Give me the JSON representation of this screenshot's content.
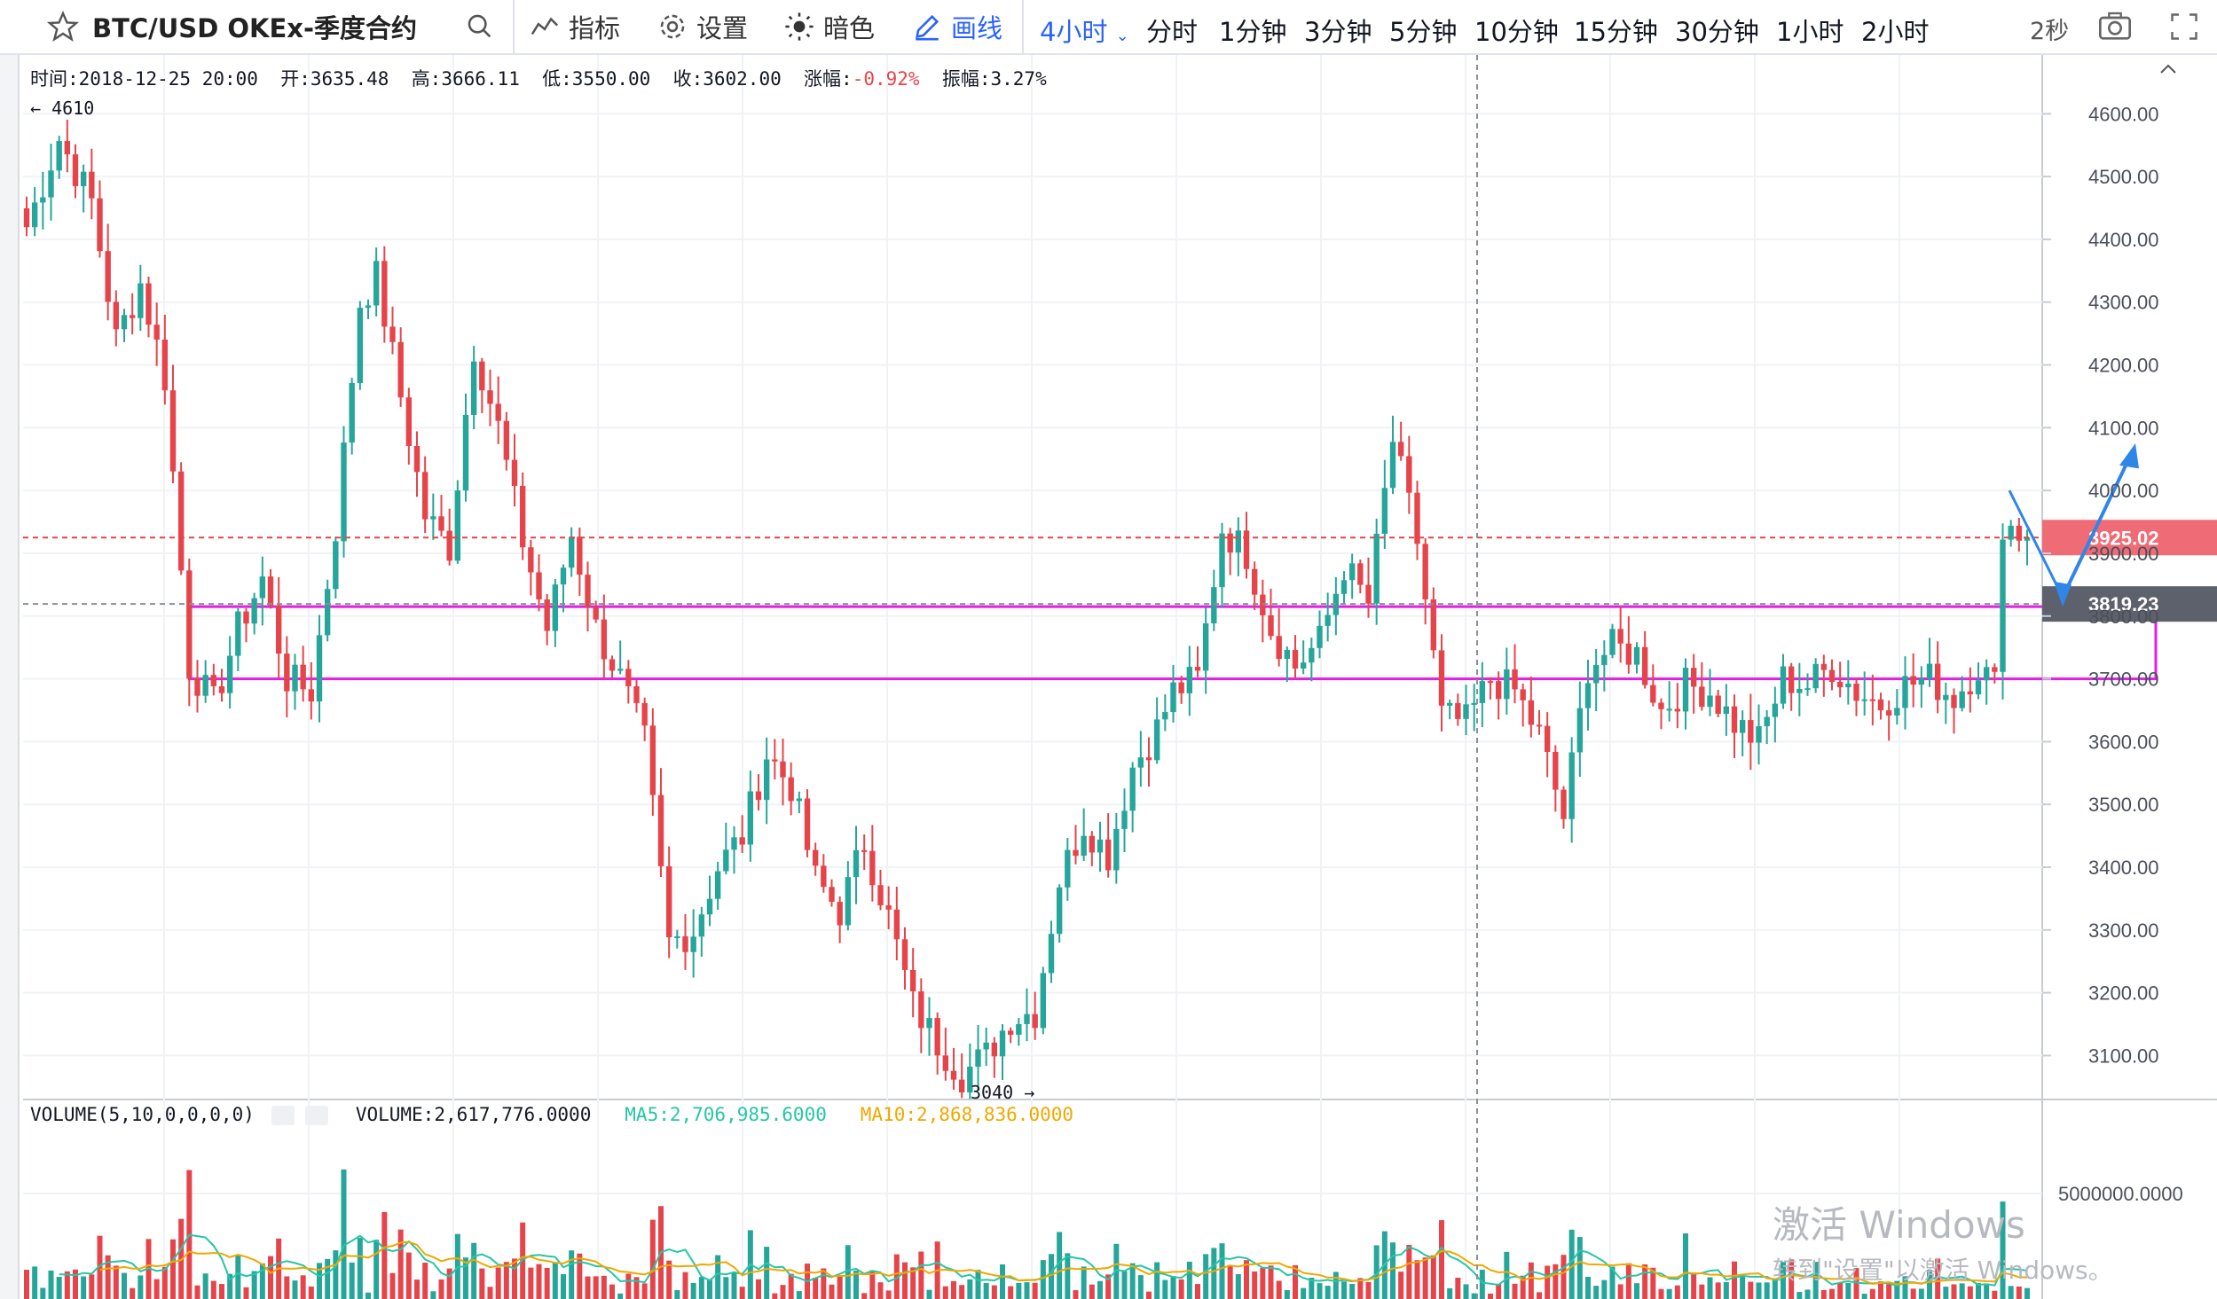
{
  "toolbar": {
    "symbol": "BTC/USD OKEx-季度合约",
    "indicators_label": "指标",
    "settings_label": "设置",
    "dark_label": "暗色",
    "draw_label": "画线",
    "current_interval": "4小时",
    "intervals": [
      "分时",
      "1分钟",
      "3分钟",
      "5分钟",
      "10分钟",
      "15分钟",
      "30分钟",
      "1小时",
      "2小时"
    ],
    "refresh": "2秒"
  },
  "legend": {
    "time": "时间:2018-12-25 20:00",
    "open": "开:3635.48",
    "high": "高:3666.11",
    "low": "低:3550.00",
    "close": "收:3602.00",
    "change": "-0.92%",
    "change_label": "涨幅:",
    "amplitude": "振幅:3.27%"
  },
  "volume_legend": {
    "title": "VOLUME(5,10,0,0,0,0)",
    "volume": "VOLUME:2,617,776.0000",
    "ma5": "MA5:2,706,985.6000",
    "ma10": "MA10:2,868,836.0000"
  },
  "watermark": {
    "line1": "激活 Windows",
    "line2": "转到\"设置\"以激活 Windows。"
  },
  "colors": {
    "up": "#26a69a",
    "down": "#e5454a",
    "price_badge": "#ef6b75",
    "crosshair_badge": "#5d616c",
    "magenta": "#e31ee6",
    "arrow": "#2f86e8",
    "ma5": "#26c6a6",
    "ma10": "#f0a800"
  },
  "chart_data": {
    "type": "candlestick",
    "title": "BTC/USD OKEx-季度合约",
    "interval": "4小时",
    "ylim": [
      3030,
      4640
    ],
    "y_ticks": [
      "4600.00",
      "4500.00",
      "4400.00",
      "4300.00",
      "4200.00",
      "4100.00",
      "4000.00",
      "3900.00",
      "3800.00",
      "3700.00",
      "3600.00",
      "3500.00",
      "3400.00",
      "3300.00",
      "3200.00",
      "3100.00"
    ],
    "y_tick_values": [
      4600,
      4500,
      4400,
      4300,
      4200,
      4100,
      4000,
      3900,
      3800,
      3700,
      3600,
      3500,
      3400,
      3300,
      3200,
      3100
    ],
    "annotations": {
      "high_label": "← 4610",
      "low_label": "3040 →",
      "high_value": 4610,
      "low_value": 3040
    },
    "last_price": "3925.02",
    "last_price_value": 3925.02,
    "crosshair_price": "3819.23",
    "crosshair_value": 3819.23,
    "zone": {
      "top": 3815,
      "bottom": 3700
    },
    "volume_axis_label": "5000000.0000",
    "volume_axis_value": 5000000,
    "anchors": [
      [
        0,
        4420
      ],
      [
        4,
        4560
      ],
      [
        8,
        4460
      ],
      [
        11,
        4240
      ],
      [
        14,
        4330
      ],
      [
        17,
        4180
      ],
      [
        20,
        3720
      ],
      [
        23,
        3660
      ],
      [
        26,
        3780
      ],
      [
        29,
        3860
      ],
      [
        32,
        3700
      ],
      [
        35,
        3680
      ],
      [
        38,
        3940
      ],
      [
        41,
        4300
      ],
      [
        43,
        4340
      ],
      [
        46,
        4150
      ],
      [
        49,
        3960
      ],
      [
        52,
        3910
      ],
      [
        55,
        4230
      ],
      [
        58,
        4100
      ],
      [
        61,
        3920
      ],
      [
        64,
        3780
      ],
      [
        67,
        3930
      ],
      [
        70,
        3780
      ],
      [
        73,
        3700
      ],
      [
        76,
        3600
      ],
      [
        79,
        3280
      ],
      [
        82,
        3300
      ],
      [
        85,
        3400
      ],
      [
        88,
        3450
      ],
      [
        91,
        3580
      ],
      [
        94,
        3530
      ],
      [
        97,
        3380
      ],
      [
        100,
        3330
      ],
      [
        103,
        3440
      ],
      [
        106,
        3320
      ],
      [
        109,
        3180
      ],
      [
        112,
        3120
      ],
      [
        115,
        3070
      ],
      [
        118,
        3100
      ],
      [
        121,
        3160
      ],
      [
        124,
        3170
      ],
      [
        127,
        3380
      ],
      [
        130,
        3470
      ],
      [
        133,
        3420
      ],
      [
        136,
        3560
      ],
      [
        139,
        3620
      ],
      [
        141,
        3680
      ],
      [
        144,
        3700
      ],
      [
        147,
        3940
      ],
      [
        150,
        3900
      ],
      [
        153,
        3780
      ],
      [
        156,
        3720
      ],
      [
        159,
        3760
      ],
      [
        162,
        3880
      ],
      [
        165,
        3820
      ],
      [
        168,
        4080
      ],
      [
        171,
        3920
      ],
      [
        174,
        3640
      ],
      [
        177,
        3630
      ],
      [
        180,
        3700
      ],
      [
        183,
        3680
      ],
      [
        186,
        3610
      ],
      [
        189,
        3480
      ],
      [
        192,
        3720
      ],
      [
        195,
        3750
      ],
      [
        198,
        3740
      ],
      [
        201,
        3650
      ],
      [
        204,
        3690
      ],
      [
        207,
        3680
      ],
      [
        210,
        3630
      ],
      [
        213,
        3600
      ],
      [
        216,
        3700
      ],
      [
        219,
        3690
      ],
      [
        222,
        3720
      ],
      [
        225,
        3680
      ],
      [
        228,
        3660
      ],
      [
        231,
        3690
      ],
      [
        234,
        3700
      ],
      [
        237,
        3670
      ],
      [
        240,
        3720
      ],
      [
        242,
        3690
      ],
      [
        243,
        3950
      ],
      [
        246,
        3925
      ]
    ]
  }
}
